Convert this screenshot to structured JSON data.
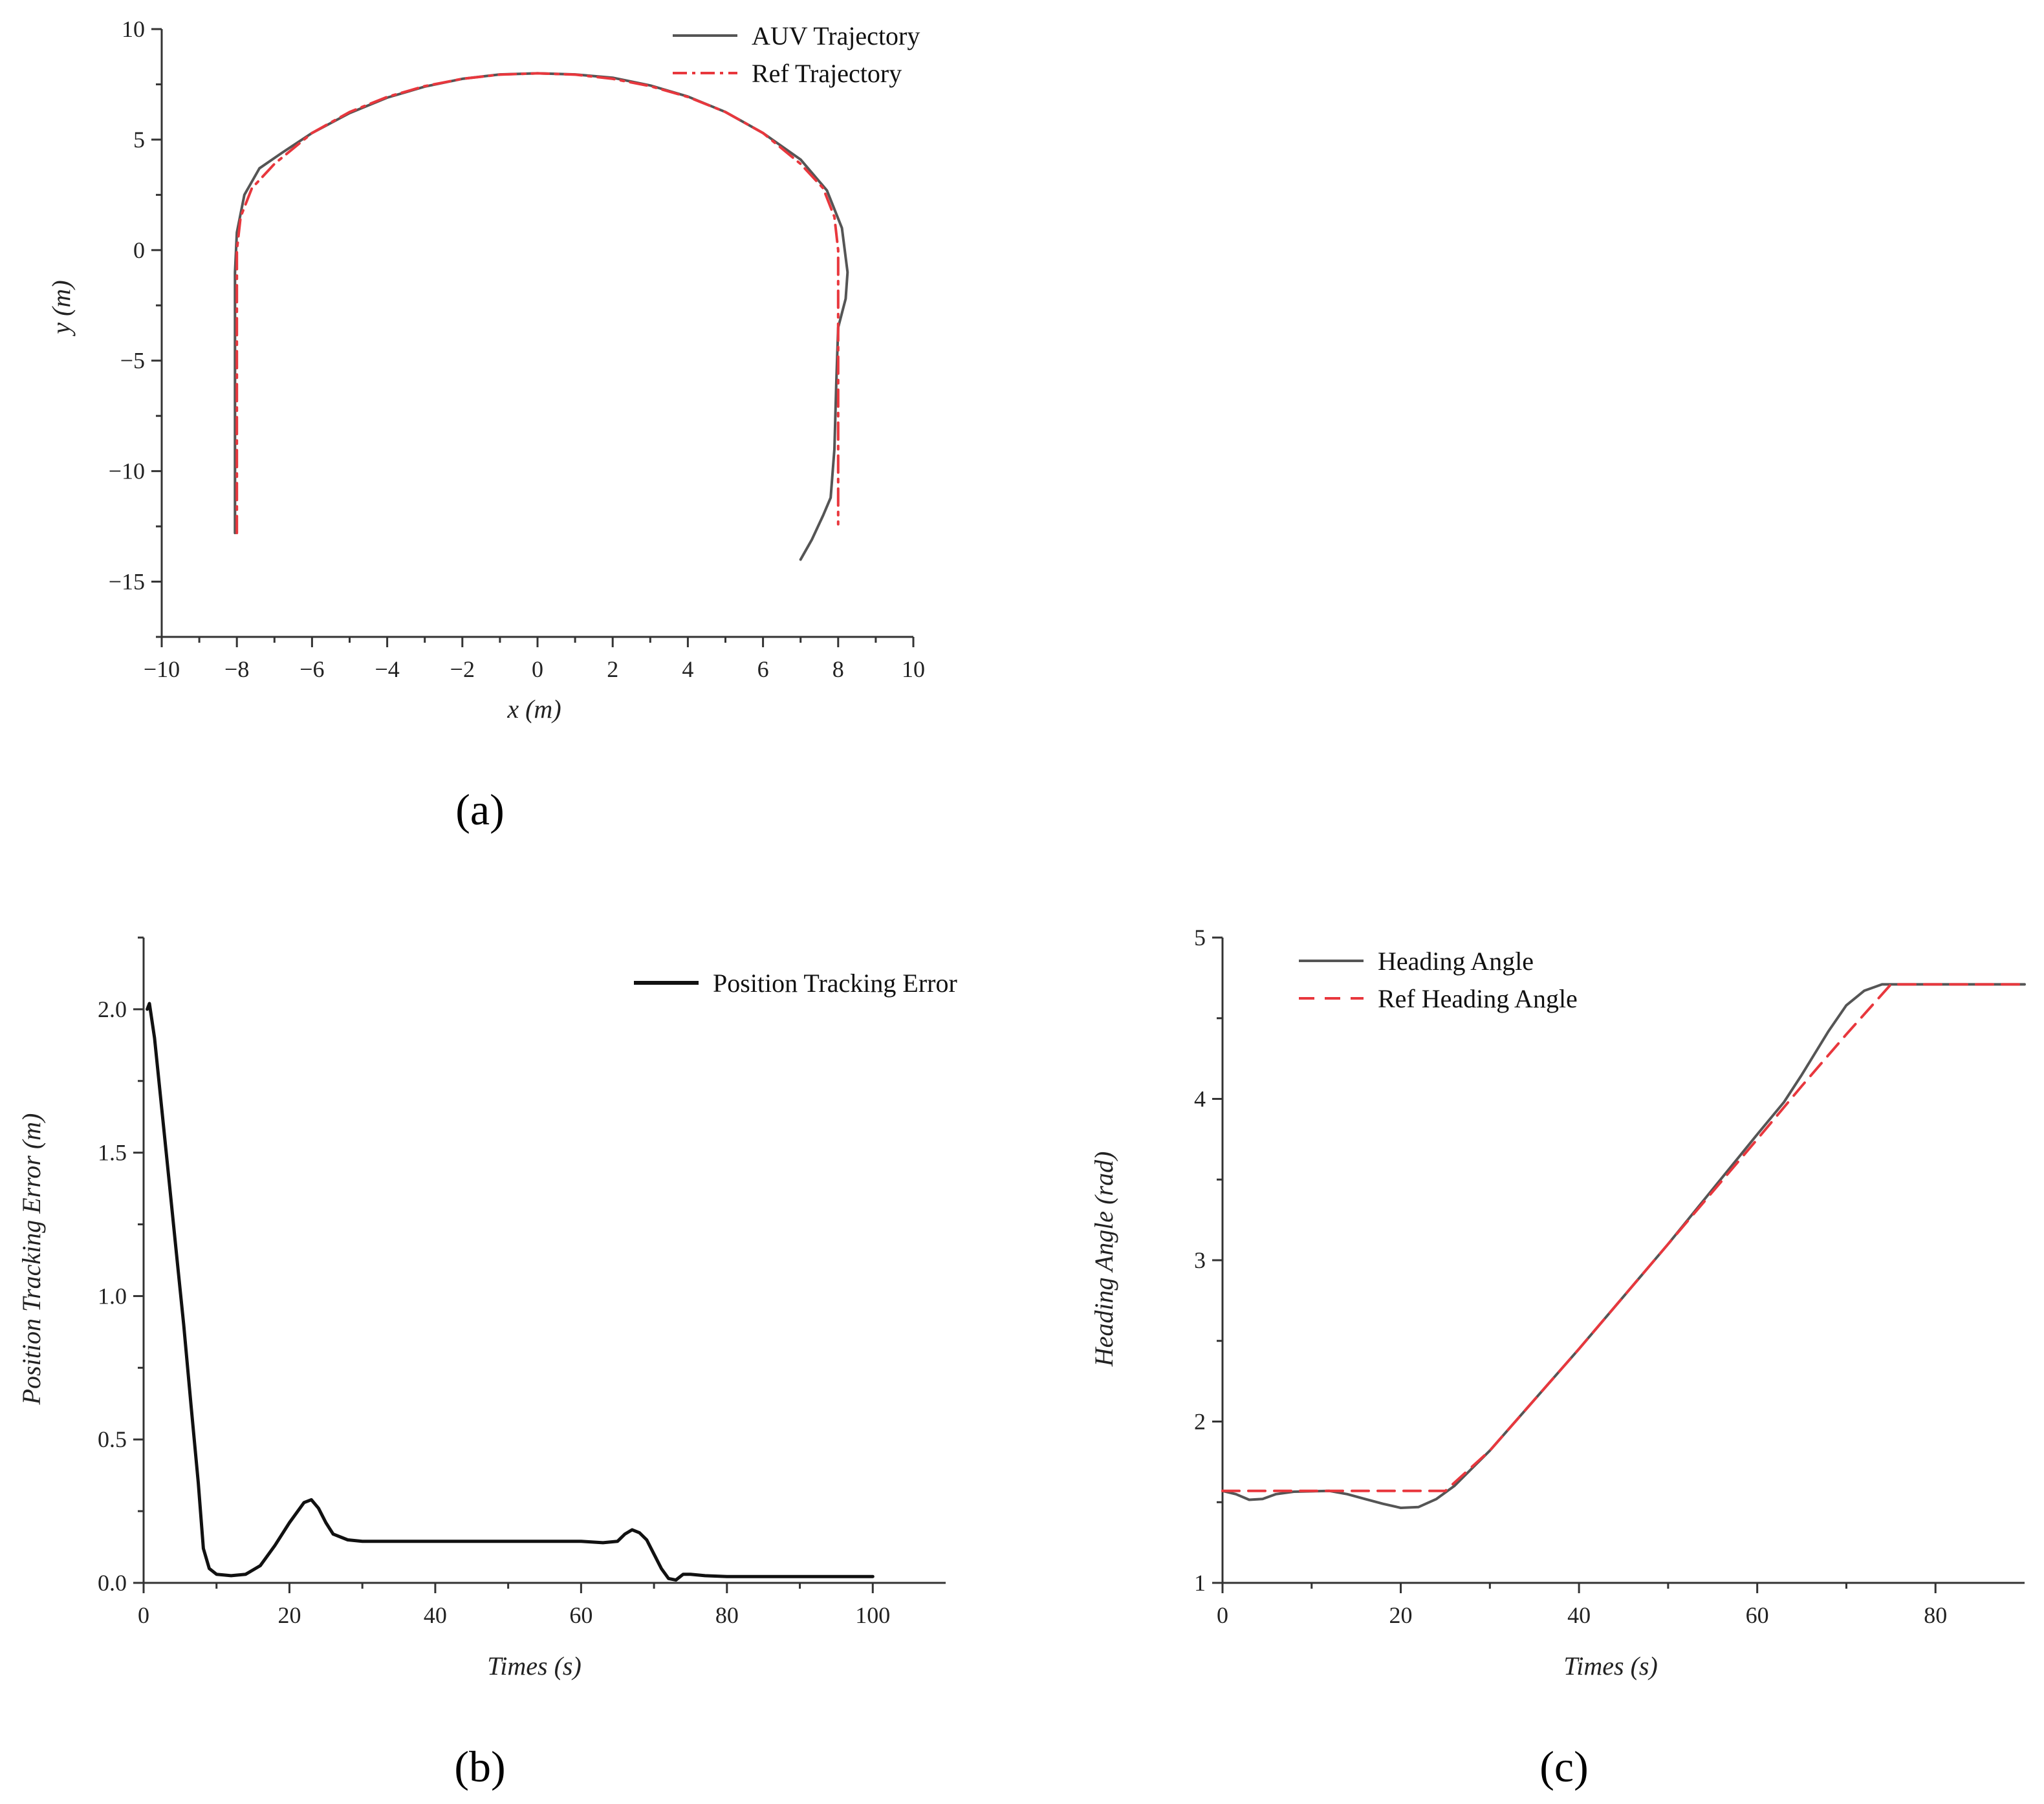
{
  "chart_data": [
    {
      "panel": "(a)",
      "type": "line",
      "xlabel": "x (m)",
      "ylabel": "y (m)",
      "xlim": [
        -10,
        10
      ],
      "ylim": [
        -17.5,
        10
      ],
      "xticks": [
        -10,
        -8,
        -6,
        -4,
        -2,
        0,
        2,
        4,
        6,
        8,
        10
      ],
      "xtick_labels": [
        "−10",
        "−8",
        "−6",
        "−4",
        "−2",
        "0",
        "2",
        "4",
        "6",
        "8",
        "10"
      ],
      "yticks": [
        10,
        5,
        0,
        -5,
        -10,
        -15
      ],
      "ytick_labels": [
        "10",
        "5",
        "0",
        "−5",
        "−10",
        "−15"
      ],
      "legend_position": "top-right",
      "series": [
        {
          "name": "AUV Trajectory",
          "color": "#555555",
          "dash": "solid",
          "points": [
            [
              -8.05,
              -12.8
            ],
            [
              -8.05,
              -6
            ],
            [
              -8.05,
              -1
            ],
            [
              -8.0,
              0.8
            ],
            [
              -7.8,
              2.5
            ],
            [
              -7.4,
              3.7
            ],
            [
              -6.8,
              4.4
            ],
            [
              -6.0,
              5.3
            ],
            [
              -5.0,
              6.2
            ],
            [
              -4.0,
              6.9
            ],
            [
              -3.0,
              7.4
            ],
            [
              -2.0,
              7.75
            ],
            [
              -1.0,
              7.95
            ],
            [
              0.0,
              8.0
            ],
            [
              1.0,
              7.95
            ],
            [
              2.0,
              7.8
            ],
            [
              3.0,
              7.45
            ],
            [
              4.0,
              6.95
            ],
            [
              5.0,
              6.25
            ],
            [
              6.0,
              5.3
            ],
            [
              7.0,
              4.1
            ],
            [
              7.7,
              2.7
            ],
            [
              8.1,
              1.0
            ],
            [
              8.25,
              -1.0
            ],
            [
              8.2,
              -2.2
            ],
            [
              8.0,
              -3.5
            ],
            [
              7.95,
              -6
            ],
            [
              7.9,
              -9
            ],
            [
              7.8,
              -11.2
            ],
            [
              7.6,
              -12.0
            ],
            [
              7.3,
              -13.1
            ],
            [
              7.0,
              -14.0
            ]
          ]
        },
        {
          "name": "Ref Trajectory",
          "color": "#e8373d",
          "dash": "dashdot",
          "points": [
            [
              -8.0,
              -12.8
            ],
            [
              -8.0,
              -5
            ],
            [
              -8.0,
              0
            ],
            [
              -7.9,
              1.5
            ],
            [
              -7.6,
              2.8
            ],
            [
              -7.0,
              3.9
            ],
            [
              -6.0,
              5.3
            ],
            [
              -5.0,
              6.25
            ],
            [
              -4.0,
              6.93
            ],
            [
              -3.0,
              7.42
            ],
            [
              -2.0,
              7.75
            ],
            [
              -1.0,
              7.94
            ],
            [
              0.0,
              8.0
            ],
            [
              1.0,
              7.94
            ],
            [
              2.0,
              7.75
            ],
            [
              3.0,
              7.42
            ],
            [
              4.0,
              6.93
            ],
            [
              5.0,
              6.25
            ],
            [
              6.0,
              5.3
            ],
            [
              7.0,
              3.9
            ],
            [
              7.6,
              2.8
            ],
            [
              7.9,
              1.5
            ],
            [
              8.0,
              0
            ],
            [
              8.0,
              -5
            ],
            [
              8.0,
              -12.4
            ]
          ]
        }
      ]
    },
    {
      "panel": "(b)",
      "type": "line",
      "xlabel": "Times (s)",
      "ylabel": "Position Tracking Error (m)",
      "xlim": [
        0,
        110
      ],
      "ylim": [
        0,
        2.25
      ],
      "xticks": [
        0,
        20,
        40,
        60,
        80,
        100
      ],
      "xtick_labels": [
        "0",
        "20",
        "40",
        "60",
        "80",
        "100"
      ],
      "yticks": [
        0,
        0.5,
        1.0,
        1.5,
        2.0
      ],
      "ytick_labels": [
        "0.0",
        "0.5",
        "1.0",
        "1.5",
        "2.0"
      ],
      "legend_position": "top-right",
      "series": [
        {
          "name": "Position Tracking Error",
          "color": "#111111",
          "dash": "solid",
          "points": [
            [
              0.5,
              2.0
            ],
            [
              0.8,
              2.02
            ],
            [
              1.5,
              1.9
            ],
            [
              2.5,
              1.65
            ],
            [
              3.5,
              1.4
            ],
            [
              4.5,
              1.15
            ],
            [
              5.5,
              0.9
            ],
            [
              6.5,
              0.62
            ],
            [
              7.5,
              0.35
            ],
            [
              8.2,
              0.12
            ],
            [
              9,
              0.05
            ],
            [
              10,
              0.03
            ],
            [
              12,
              0.025
            ],
            [
              14,
              0.03
            ],
            [
              16,
              0.06
            ],
            [
              18,
              0.13
            ],
            [
              20,
              0.21
            ],
            [
              22,
              0.28
            ],
            [
              23,
              0.29
            ],
            [
              24,
              0.26
            ],
            [
              25,
              0.21
            ],
            [
              26,
              0.17
            ],
            [
              28,
              0.15
            ],
            [
              30,
              0.145
            ],
            [
              40,
              0.145
            ],
            [
              50,
              0.145
            ],
            [
              60,
              0.145
            ],
            [
              63,
              0.14
            ],
            [
              65,
              0.145
            ],
            [
              66,
              0.17
            ],
            [
              67,
              0.185
            ],
            [
              68,
              0.175
            ],
            [
              69,
              0.15
            ],
            [
              70,
              0.1
            ],
            [
              71,
              0.05
            ],
            [
              72,
              0.015
            ],
            [
              73,
              0.01
            ],
            [
              74,
              0.03
            ],
            [
              75,
              0.03
            ],
            [
              77,
              0.025
            ],
            [
              80,
              0.022
            ],
            [
              90,
              0.022
            ],
            [
              100,
              0.022
            ]
          ]
        }
      ]
    },
    {
      "panel": "(c)",
      "type": "line",
      "xlabel": "Times (s)",
      "ylabel": "Heading Angle (rad)",
      "xlim": [
        0,
        90
      ],
      "ylim": [
        1,
        5
      ],
      "xticks": [
        0,
        20,
        40,
        60,
        80
      ],
      "xtick_labels": [
        "0",
        "20",
        "40",
        "60",
        "80"
      ],
      "yticks": [
        1,
        2,
        3,
        4,
        5
      ],
      "ytick_labels": [
        "1",
        "2",
        "3",
        "4",
        "5"
      ],
      "legend_position": "top-left",
      "series": [
        {
          "name": "Heading Angle",
          "color": "#555555",
          "dash": "solid",
          "points": [
            [
              0,
              1.57
            ],
            [
              1.5,
              1.55
            ],
            [
              3,
              1.515
            ],
            [
              4.5,
              1.52
            ],
            [
              6,
              1.55
            ],
            [
              8,
              1.565
            ],
            [
              12,
              1.57
            ],
            [
              14,
              1.55
            ],
            [
              16,
              1.52
            ],
            [
              18,
              1.49
            ],
            [
              20,
              1.465
            ],
            [
              22,
              1.47
            ],
            [
              24,
              1.52
            ],
            [
              26,
              1.6
            ],
            [
              30,
              1.82
            ],
            [
              40,
              2.45
            ],
            [
              50,
              3.1
            ],
            [
              60,
              3.78
            ],
            [
              63,
              3.98
            ],
            [
              65,
              4.15
            ],
            [
              68,
              4.42
            ],
            [
              70,
              4.58
            ],
            [
              72,
              4.67
            ],
            [
              74,
              4.71
            ],
            [
              80,
              4.71
            ],
            [
              90,
              4.71
            ]
          ]
        },
        {
          "name": "Ref Heading Angle",
          "color": "#e8373d",
          "dash": "dashed",
          "points": [
            [
              0,
              1.57
            ],
            [
              25,
              1.57
            ],
            [
              30,
              1.82
            ],
            [
              40,
              2.45
            ],
            [
              50,
              3.1
            ],
            [
              60,
              3.75
            ],
            [
              65,
              4.08
            ],
            [
              70,
              4.4
            ],
            [
              75,
              4.71
            ],
            [
              90,
              4.71
            ]
          ]
        }
      ]
    }
  ]
}
